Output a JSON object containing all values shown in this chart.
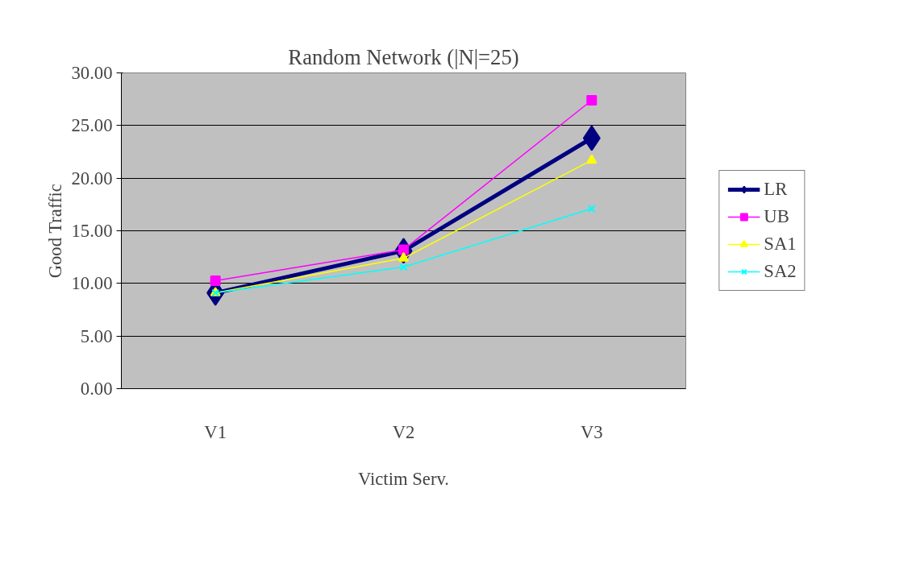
{
  "chart_data": {
    "type": "line",
    "title": "Random Network (|N|=25)",
    "xlabel": "Victim Serv.",
    "ylabel": "Good Traffic",
    "categories": [
      "V1",
      "V2",
      "V3"
    ],
    "series": [
      {
        "name": "LR",
        "color": "#000080",
        "marker": "diamond",
        "values": [
          9.1,
          13.1,
          23.8
        ]
      },
      {
        "name": "UB",
        "color": "#ff00ff",
        "marker": "square",
        "values": [
          10.25,
          13.2,
          27.4
        ]
      },
      {
        "name": "SA1",
        "color": "#ffff00",
        "marker": "triangle",
        "values": [
          9.1,
          12.4,
          21.7
        ]
      },
      {
        "name": "SA2",
        "color": "#00ffff",
        "marker": "x",
        "values": [
          9.1,
          11.55,
          17.1
        ]
      }
    ],
    "ylim": [
      0,
      30
    ],
    "yticks": [
      {
        "value": 0,
        "label": "0.00"
      },
      {
        "value": 5,
        "label": "5.00"
      },
      {
        "value": 10,
        "label": "10.00"
      },
      {
        "value": 15,
        "label": "15.00"
      },
      {
        "value": 20,
        "label": "20.00"
      },
      {
        "value": 25,
        "label": "25.00"
      },
      {
        "value": 30,
        "label": "30.00"
      }
    ],
    "grid": "y",
    "legend": "right"
  }
}
